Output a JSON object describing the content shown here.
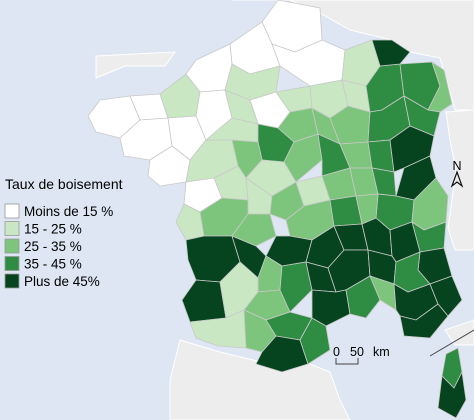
{
  "map": {
    "colors": {
      "sea": "#dde6f2",
      "neighbor": "#ededed",
      "border": "#8c8c8c"
    }
  },
  "legend": {
    "title": "Taux de boisement",
    "classes": [
      {
        "label": "Moins de 15 %",
        "color": "#ffffff"
      },
      {
        "label": "15 - 25 %",
        "color": "#c9e7c2"
      },
      {
        "label": "25 - 35 %",
        "color": "#7dc47c"
      },
      {
        "label": "35 - 45 %",
        "color": "#2e8c43"
      },
      {
        "label": "Plus de 45%",
        "color": "#06441f"
      }
    ]
  },
  "scale_bar": {
    "ticks": [
      "0",
      "50"
    ],
    "unit": "km"
  },
  "north_arrow": {
    "label": "N",
    "icon": "north-arrow-icon"
  }
}
